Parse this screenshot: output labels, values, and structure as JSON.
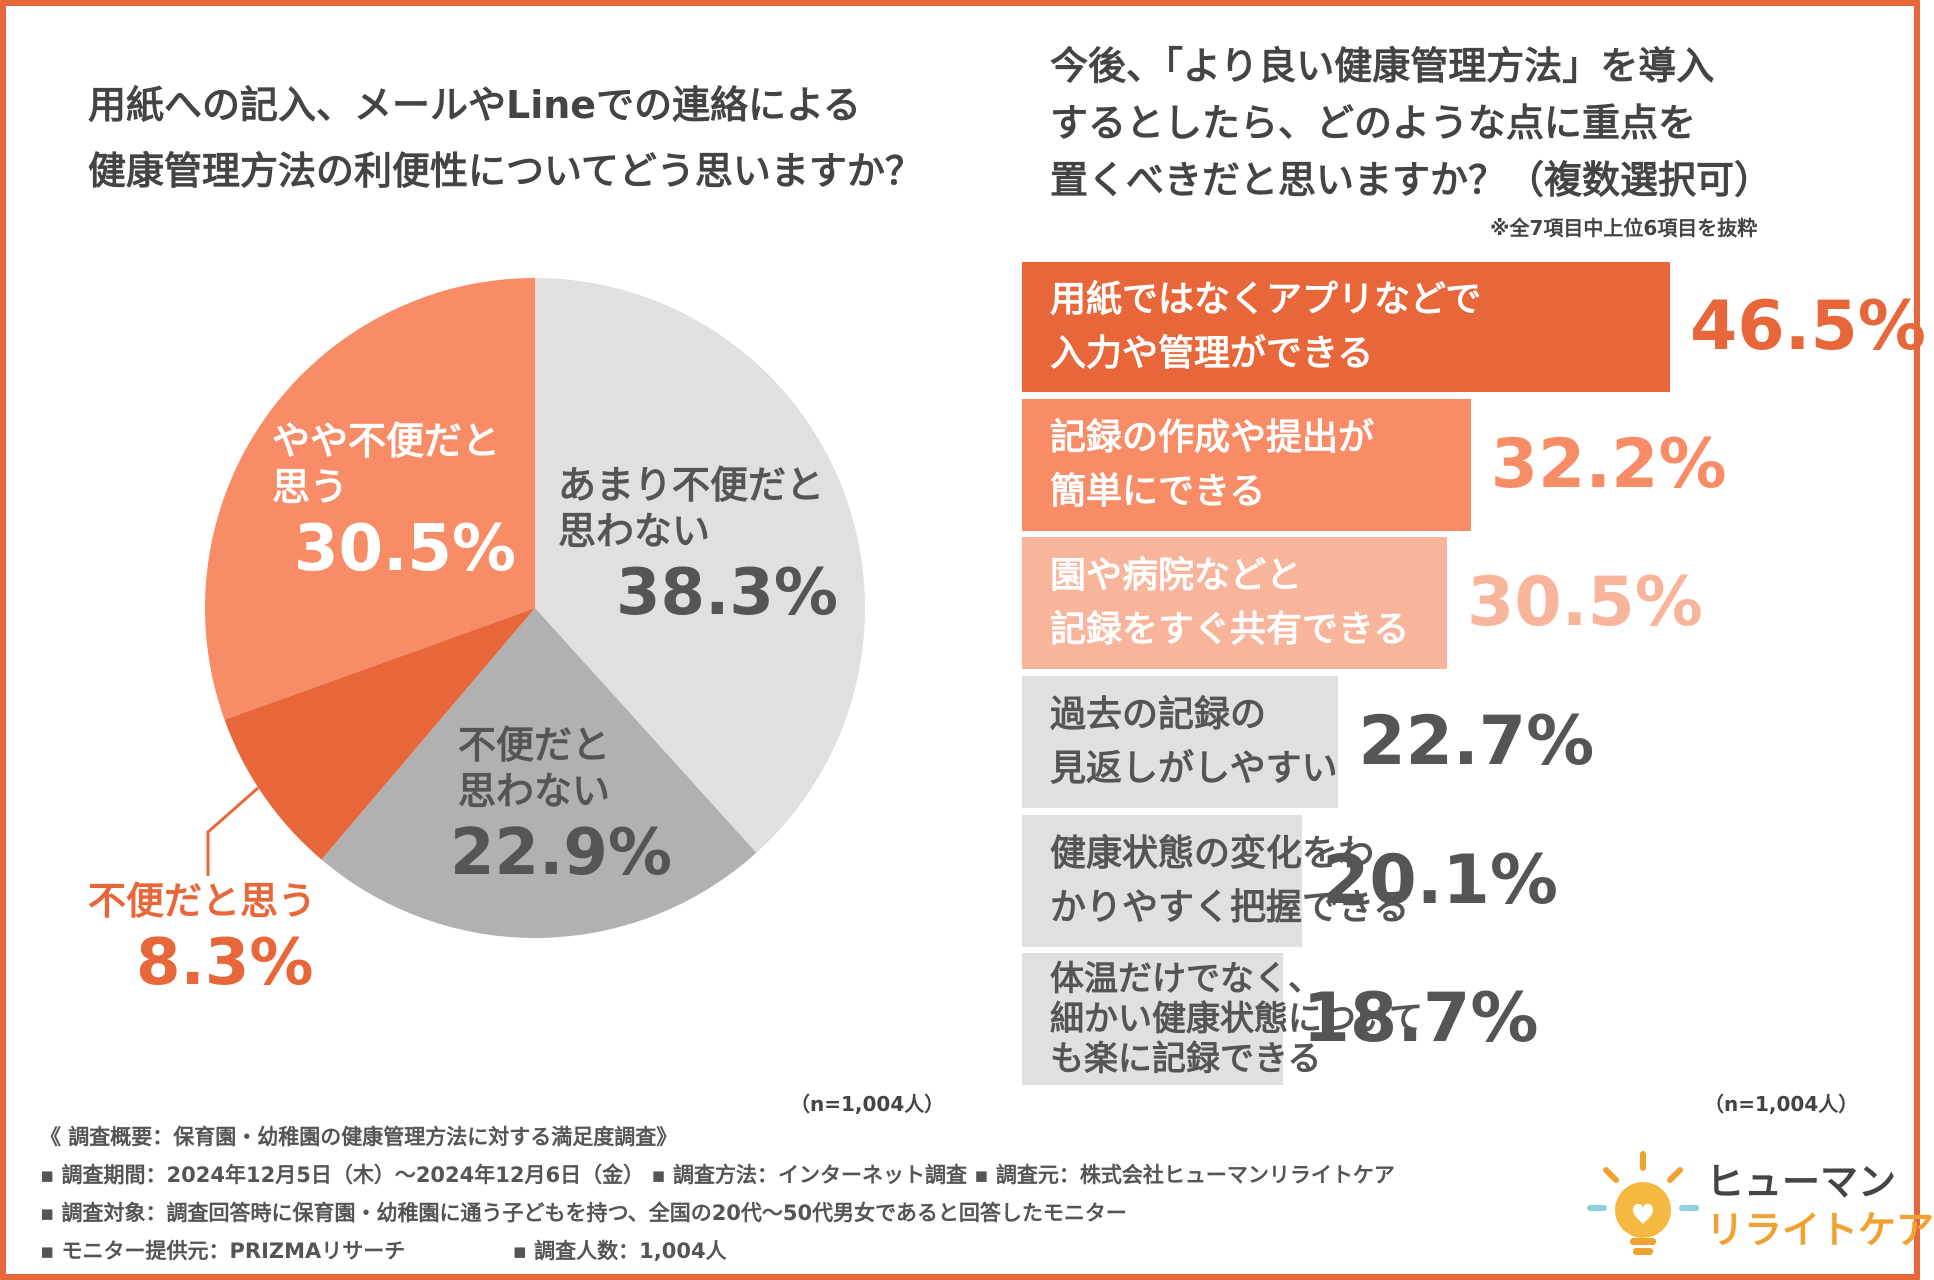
{
  "colors": {
    "accent": "#e8673a",
    "orange_mid": "#f78c66",
    "orange_light": "#f9b59b",
    "gray_light": "#e0e0e0",
    "gray_mid": "#b1b1b1",
    "text_dark": "#444444",
    "text_gray": "#555555",
    "white": "#ffffff"
  },
  "left": {
    "title_line1": "用紙への記入、メールやLineでの連絡による",
    "title_line2": "健康管理方法の利便性についてどう思いますか？",
    "n_label": "（n=1,004人）"
  },
  "right": {
    "title_line1": "今後、「より良い健康管理方法」を導入",
    "title_line2": "するとしたら、どのような点に重点を",
    "title_line3": "置くべきだと思いますか？（複数選択可）",
    "note": "※全7項目中上位6項目を抜粋",
    "n_label": "（n=1,004人）"
  },
  "chart_data": [
    {
      "type": "pie",
      "title": "用紙への記入、メールやLineでの連絡による健康管理方法の利便性についてどう思いますか？",
      "start": "12 o'clock, clockwise",
      "slices": [
        {
          "label": "あまり不便だと思わない",
          "value": 38.3,
          "value_text": "38.3%",
          "color": "#e0e0e0",
          "text_color": "#555555"
        },
        {
          "label": "不便だと思わない",
          "value": 22.9,
          "value_text": "22.9%",
          "color": "#b1b1b1",
          "text_color": "#555555"
        },
        {
          "label": "不便だと思う",
          "value": 8.3,
          "value_text": "8.3%",
          "color": "#e8673a",
          "text_color": "#e8673a"
        },
        {
          "label": "やや不便だと思う",
          "value": 30.5,
          "value_text": "30.5%",
          "color": "#f78c66",
          "text_color": "#ffffff"
        }
      ],
      "n": "（n=1,004人）"
    },
    {
      "type": "bar",
      "orientation": "horizontal",
      "title": "今後、「より良い健康管理方法」を導入するとしたら、どのような点に重点を置くべきだと思いますか？（複数選択可）",
      "xlim": [
        0,
        60
      ],
      "bars": [
        {
          "label": "用紙ではなくアプリなどで\n入力や管理ができる",
          "value": 46.5,
          "value_text": "46.5%",
          "color": "#e8673a",
          "label_color": "#ffffff",
          "value_color": "#e8673a"
        },
        {
          "label": "記録の作成や提出が\n簡単にできる",
          "value": 32.2,
          "value_text": "32.2%",
          "color": "#f78c66",
          "label_color": "#ffffff",
          "value_color": "#f78c66"
        },
        {
          "label": "園や病院などと\n記録をすぐ共有できる",
          "value": 30.5,
          "value_text": "30.5%",
          "color": "#f9b59b",
          "label_color": "#ffffff",
          "value_color": "#f9b59b"
        },
        {
          "label": "過去の記録の\n見返しがしやすい",
          "value": 22.7,
          "value_text": "22.7%",
          "color": "#e0e0e0",
          "label_color": "#555555",
          "value_color": "#555555"
        },
        {
          "label": "健康状態の変化をわ\nかりやすく把握できる",
          "value": 20.1,
          "value_text": "20.1%",
          "color": "#e0e0e0",
          "label_color": "#555555",
          "value_color": "#555555"
        },
        {
          "label": "体温だけでなく、\n細かい健康状態について\nも楽に記録できる",
          "value": 18.7,
          "value_text": "18.7%",
          "color": "#e0e0e0",
          "label_color": "#555555",
          "value_color": "#555555"
        }
      ],
      "n": "（n=1,004人）"
    }
  ],
  "survey": {
    "heading": "《 調査概要：保育園・幼稚園の健康管理方法に対する満足度調査》",
    "period": "▪ 調査期間：2024年12月5日（木）〜2024年12月6日（金）",
    "method": "▪ 調査方法：インターネット調査",
    "organizer": "▪ 調査元：株式会社ヒューマンリライトケア",
    "target": "▪ 調査対象：調査回答時に保育園・幼稚園に通う子どもを持つ、全国の20代〜50代男女であると回答したモニター",
    "provider": "▪ モニター提供元：PRIZMAリサーチ",
    "count": "▪ 調査人数：1,004人"
  },
  "logo": {
    "line1": "ヒューマン",
    "line2": "リライトケア"
  }
}
